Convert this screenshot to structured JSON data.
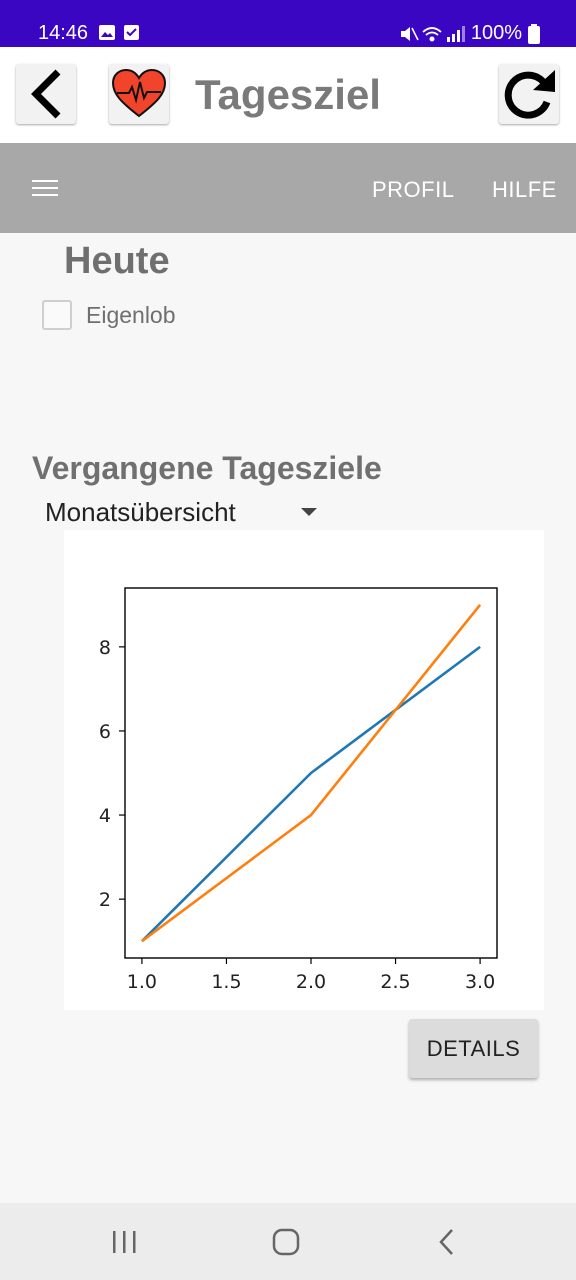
{
  "status_bar": {
    "time": "14:46",
    "battery": "100%"
  },
  "header": {
    "title": "Tagesziel",
    "back_icon": "back-arrow-icon",
    "logo_icon": "heart-ecg-icon",
    "refresh_icon": "refresh-icon"
  },
  "toolbar": {
    "menu_icon": "hamburger-icon",
    "items": [
      {
        "label": "PROFIL"
      },
      {
        "label": "HILFE"
      }
    ]
  },
  "today": {
    "heading": "Heute",
    "checkbox_label": "Eigenlob",
    "checked": false
  },
  "past": {
    "heading": "Vergangene Tagesziele",
    "dropdown_value": "Monatsübersicht"
  },
  "chart_data": {
    "type": "line",
    "x": [
      1.0,
      2.0,
      3.0
    ],
    "series": [
      {
        "values": [
          1,
          5,
          8
        ],
        "color": "#1f77b4"
      },
      {
        "values": [
          1,
          4,
          9
        ],
        "color": "#ff7f0e"
      }
    ],
    "xticks": [
      "1.0",
      "1.5",
      "2.0",
      "2.5",
      "3.0"
    ],
    "yticks": [
      "2",
      "4",
      "6",
      "8"
    ],
    "xlim": [
      0.9,
      3.1
    ],
    "ylim": [
      0.6,
      9.4
    ],
    "grid": false,
    "legend": false
  },
  "actions": {
    "details_label": "DETAILS"
  },
  "nav_bar": {
    "icons": [
      "recent-apps-icon",
      "home-icon",
      "back-icon"
    ]
  }
}
